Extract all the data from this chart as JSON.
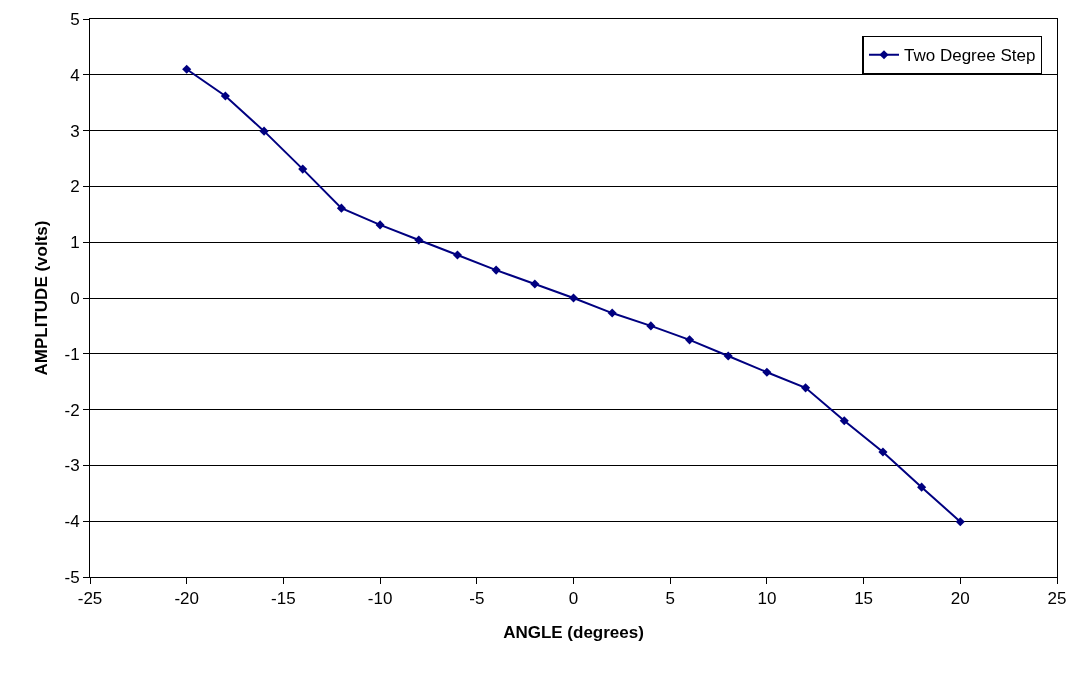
{
  "chart_data": {
    "type": "line",
    "xlabel": "ANGLE (degrees)",
    "ylabel": "AMPLITUDE (volts)",
    "x": [
      -20,
      -18,
      -16,
      -14,
      -12,
      -10,
      -8,
      -6,
      -4,
      -2,
      0,
      2,
      4,
      6,
      8,
      10,
      12,
      14,
      16,
      18,
      20
    ],
    "series": [
      {
        "name": "Two Degree Step",
        "color": "#000080",
        "values": [
          4.1,
          3.62,
          2.99,
          2.31,
          1.61,
          1.31,
          1.04,
          0.77,
          0.5,
          0.25,
          0,
          -0.27,
          -0.5,
          -0.75,
          -1.04,
          -1.33,
          -1.61,
          -2.2,
          -2.76,
          -3.39,
          -4.01
        ]
      }
    ],
    "xlim": [
      -25,
      25
    ],
    "xticks": [
      -25,
      -20,
      -15,
      -10,
      -5,
      0,
      5,
      10,
      15,
      20,
      25
    ],
    "ylim": [
      -5,
      5
    ],
    "yticks": [
      -5,
      -4,
      -3,
      -2,
      -1,
      0,
      1,
      2,
      3,
      4,
      5
    ],
    "grid": "y",
    "legend": "top right",
    "marker": "diamond",
    "line_style": "solid"
  }
}
